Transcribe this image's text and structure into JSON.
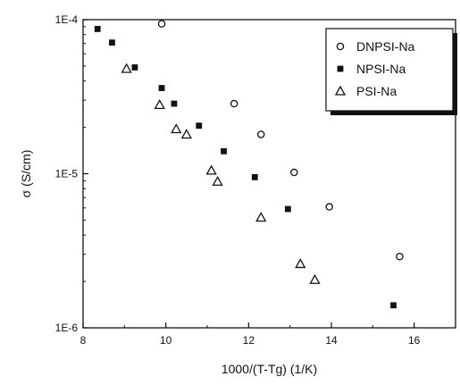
{
  "chart_data": {
    "type": "scatter",
    "title": "",
    "xlabel": "1000/(T-Tg) (1/K)",
    "ylabel": "σ (S/cm)",
    "xlim": [
      8,
      17
    ],
    "ylim": [
      1e-06,
      0.0001
    ],
    "yscale": "log",
    "x_ticks": [
      8,
      10,
      12,
      14,
      16
    ],
    "x_tick_labels": [
      "8",
      "10",
      "12",
      "14",
      "16"
    ],
    "y_ticks": [
      1e-06,
      1e-05,
      0.0001
    ],
    "y_tick_labels": [
      "1E-6",
      "1E-5",
      "1E-4"
    ],
    "grid": false,
    "legend_position": "top-right",
    "series": [
      {
        "name": "DNPSI-Na",
        "marker": "open-circle",
        "x": [
          9.9,
          11.65,
          12.3,
          13.1,
          13.95,
          15.65
        ],
        "y": [
          9.4e-05,
          2.85e-05,
          1.8e-05,
          1.02e-05,
          6.1e-06,
          2.9e-06
        ]
      },
      {
        "name": "NPSI-Na",
        "marker": "filled-square",
        "x": [
          8.35,
          8.7,
          9.25,
          9.9,
          10.2,
          10.8,
          11.4,
          12.15,
          12.95,
          15.5
        ],
        "y": [
          8.7e-05,
          7.1e-05,
          4.9e-05,
          3.6e-05,
          2.85e-05,
          2.05e-05,
          1.4e-05,
          9.5e-06,
          5.9e-06,
          1.4e-06
        ]
      },
      {
        "name": "PSI-Na",
        "marker": "open-triangle",
        "x": [
          9.05,
          9.85,
          10.25,
          10.5,
          11.1,
          11.25,
          12.3,
          13.25,
          13.6
        ],
        "y": [
          4.8e-05,
          2.8e-05,
          1.95e-05,
          1.8e-05,
          1.05e-05,
          8.9e-06,
          5.2e-06,
          2.6e-06,
          2.05e-06
        ]
      }
    ]
  }
}
